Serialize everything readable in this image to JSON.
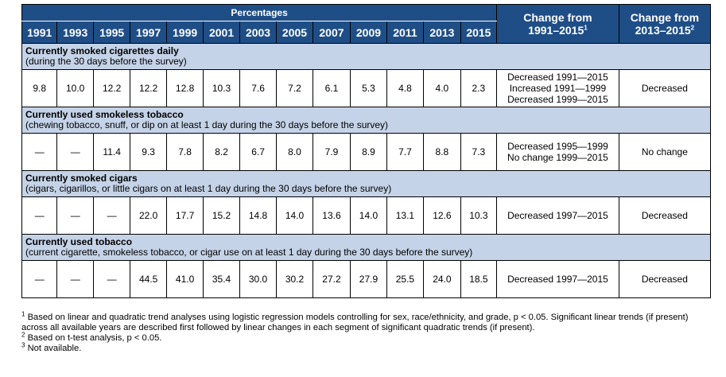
{
  "header": {
    "percentages_label": "Percentages",
    "years": [
      "1991",
      "1993",
      "1995",
      "1997",
      "1999",
      "2001",
      "2003",
      "2005",
      "2007",
      "2009",
      "2011",
      "2013",
      "2015"
    ],
    "change_long": "Change from",
    "change_long_range": "1991–2015",
    "change_long_sup": "1",
    "change_short": "Change from",
    "change_short_range": "2013–2015",
    "change_short_sup": "2"
  },
  "sections": [
    {
      "title": "Currently smoked cigarettes daily",
      "subtitle": "(during the 30 days before the survey)",
      "values": [
        "9.8",
        "10.0",
        "12.2",
        "12.2",
        "12.8",
        "10.3",
        "7.6",
        "7.2",
        "6.1",
        "5.3",
        "4.8",
        "4.0",
        "2.3"
      ],
      "change_long": [
        "Decreased 1991—2015",
        "Increased 1991—1999",
        "Decreased 1999—2015"
      ],
      "change_short": "Decreased"
    },
    {
      "title": "Currently used smokeless tobacco",
      "subtitle": "(chewing tobacco, snuff, or dip on at least 1 day during the 30 days before the survey)",
      "values": [
        "—",
        "—",
        "11.4",
        "9.3",
        "7.8",
        "8.2",
        "6.7",
        "8.0",
        "7.9",
        "8.9",
        "7.7",
        "8.8",
        "7.3"
      ],
      "change_long": [
        "Decreased 1995—1999",
        "No change 1999—2015"
      ],
      "change_short": "No change"
    },
    {
      "title": "Currently smoked cigars",
      "subtitle": "(cigars, cigarillos, or little cigars on at least 1 day during the 30 days before the survey)",
      "values": [
        "—",
        "—",
        "—",
        "22.0",
        "17.7",
        "15.2",
        "14.8",
        "14.0",
        "13.6",
        "14.0",
        "13.1",
        "12.6",
        "10.3"
      ],
      "change_long": [
        "Decreased 1997—2015"
      ],
      "change_short": "Decreased"
    },
    {
      "title": "Currently used tobacco",
      "subtitle": "(current cigarette, smokeless tobacco, or cigar use on at least 1 day during the 30 days before the survey)",
      "values": [
        "—",
        "—",
        "—",
        "44.5",
        "41.0",
        "35.4",
        "30.0",
        "30.2",
        "27.2",
        "27.9",
        "25.5",
        "24.0",
        "18.5"
      ],
      "change_long": [
        "Decreased 1997—2015"
      ],
      "change_short": "Decreased"
    }
  ],
  "footnotes": [
    {
      "mark": "1",
      "text": "Based on linear and quadratic trend analyses using logistic regression models controlling for sex, race/ethnicity, and grade, p < 0.05.  Significant linear trends (if present) across all available years are described first followed by linear changes in each segment of significant quadratic trends (if present)."
    },
    {
      "mark": "2",
      "text": "Based on t-test analysis, p < 0.05."
    },
    {
      "mark": "3",
      "text": "Not available."
    }
  ],
  "colors": {
    "header_bg": "#1f4e87",
    "section_bg": "#c5d3e8"
  }
}
